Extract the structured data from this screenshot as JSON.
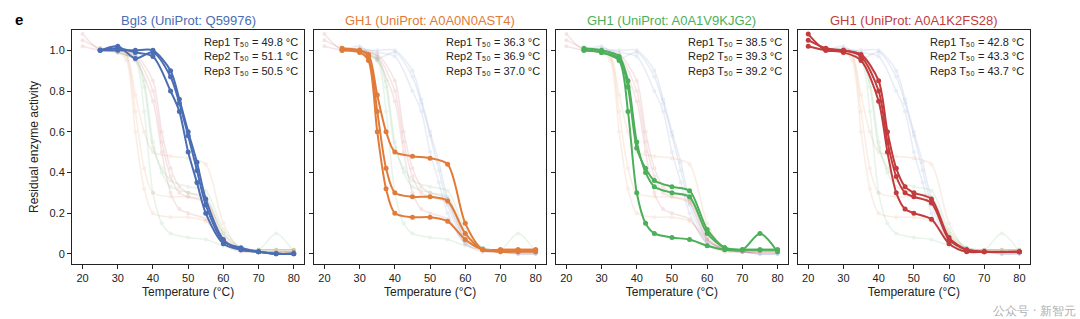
{
  "panel_label": "e",
  "watermark": "公众号 · 新智元",
  "chart_data": [
    {
      "type": "line",
      "title": "Bgl3 (UniProt: Q59976)",
      "color": "#4a6db3",
      "marker": "circle",
      "line_style": "solid",
      "xlabel": "Temperature (°C)",
      "ylabel": "Residual enzyme activity",
      "xlim": [
        17,
        83
      ],
      "xticks": [
        20,
        30,
        40,
        50,
        60,
        70,
        80
      ],
      "ylim": [
        -0.05,
        1.1
      ],
      "yticks": [
        0,
        0.2,
        0.4,
        0.6,
        0.8,
        {
          "value": 1,
          "label": "1.0"
        }
      ],
      "series": [
        {
          "name": "Rep1 T₅₀ = 49.8 °C",
          "x": [
            25,
            30,
            35,
            40,
            45,
            47.5,
            50,
            52.5,
            55,
            60,
            65,
            70,
            75,
            80
          ],
          "values": [
            1.0,
            1.01,
            0.99,
            0.97,
            0.8,
            0.7,
            0.5,
            0.35,
            0.2,
            0.05,
            0.02,
            0.01,
            0.0,
            0.0
          ]
        },
        {
          "name": "Rep2 T₅₀ = 51.1 °C",
          "x": [
            25,
            30,
            35,
            40,
            45,
            47.5,
            50,
            52.5,
            55,
            60,
            65,
            70,
            75,
            80
          ],
          "values": [
            1.0,
            1.0,
            1.0,
            1.0,
            0.9,
            0.76,
            0.6,
            0.45,
            0.27,
            0.07,
            0.02,
            0.01,
            0.0,
            0.0
          ]
        },
        {
          "name": "Rep3 T₅₀ = 50.5 °C",
          "x": [
            25,
            30,
            35,
            40,
            45,
            47.5,
            50,
            52.5,
            55,
            60,
            65,
            70,
            75,
            80
          ],
          "values": [
            1.0,
            1.02,
            0.96,
            0.99,
            0.87,
            0.74,
            0.58,
            0.41,
            0.24,
            0.06,
            0.03,
            0.01,
            0.0,
            0.0
          ]
        }
      ]
    },
    {
      "type": "line",
      "title": "GH1 (UniProt: A0A0N0AST4)",
      "color": "#e07b39",
      "marker": "circle",
      "line_style": "solid",
      "xlabel": "Temperature (°C)",
      "tick_labels": "x",
      "xlim": [
        17,
        83
      ],
      "xticks": [
        20,
        30,
        40,
        50,
        60,
        70,
        80
      ],
      "ylim": [
        -0.05,
        1.1
      ],
      "yticks": [
        0,
        0.2,
        0.4,
        0.6,
        0.8,
        {
          "value": 1,
          "label": "1.0"
        }
      ],
      "series": [
        {
          "name": "Rep1 T₅₀ = 36.3 °C",
          "x": [
            25,
            30,
            32.5,
            35,
            37.5,
            40,
            45,
            50,
            55,
            60,
            65,
            70,
            75,
            80
          ],
          "values": [
            1.0,
            0.99,
            0.95,
            0.6,
            0.32,
            0.2,
            0.18,
            0.18,
            0.16,
            0.07,
            0.02,
            0.01,
            0.01,
            0.01
          ]
        },
        {
          "name": "Rep2 T₅₀ = 36.9 °C",
          "x": [
            25,
            30,
            32.5,
            35,
            37.5,
            40,
            45,
            50,
            55,
            60,
            65,
            70,
            75,
            80
          ],
          "values": [
            1.0,
            1.0,
            0.97,
            0.7,
            0.42,
            0.3,
            0.28,
            0.28,
            0.26,
            0.1,
            0.02,
            0.02,
            0.02,
            0.02
          ]
        },
        {
          "name": "Rep3 T₅₀ = 37.0 °C",
          "x": [
            25,
            30,
            32.5,
            35,
            37.5,
            40,
            45,
            50,
            55,
            60,
            65,
            70,
            75,
            80
          ],
          "values": [
            1.01,
            1.0,
            0.98,
            0.78,
            0.6,
            0.5,
            0.48,
            0.47,
            0.44,
            0.15,
            0.02,
            0.02,
            0.02,
            0.02
          ]
        }
      ]
    },
    {
      "type": "line",
      "title": "GH1 (UniProt: A0A1V9KJG2)",
      "color": "#4caf5a",
      "marker": "circle",
      "line_style": "solid",
      "xlabel": "Temperature (°C)",
      "tick_labels": "x",
      "xlim": [
        17,
        83
      ],
      "xticks": [
        20,
        30,
        40,
        50,
        60,
        70,
        80
      ],
      "ylim": [
        -0.05,
        1.1
      ],
      "yticks": [
        0,
        0.2,
        0.4,
        0.6,
        0.8,
        {
          "value": 1,
          "label": "1.0"
        }
      ],
      "series": [
        {
          "name": "Rep1 T₅₀ = 38.5 °C",
          "x": [
            25,
            30,
            35,
            37.5,
            40,
            42.5,
            45,
            50,
            55,
            60,
            65,
            70,
            75,
            80
          ],
          "values": [
            1.0,
            0.99,
            0.95,
            0.7,
            0.3,
            0.15,
            0.1,
            0.08,
            0.07,
            0.04,
            0.02,
            0.02,
            0.02,
            0.02
          ]
        },
        {
          "name": "Rep2 T₅₀ = 39.3 °C",
          "x": [
            25,
            30,
            35,
            37.5,
            40,
            42.5,
            45,
            50,
            55,
            60,
            65,
            70,
            75,
            80
          ],
          "values": [
            1.01,
            1.0,
            0.97,
            0.85,
            0.55,
            0.4,
            0.33,
            0.3,
            0.28,
            0.1,
            0.03,
            0.02,
            0.1,
            0.01
          ]
        },
        {
          "name": "Rep3 T₅₀ = 39.2 °C",
          "x": [
            25,
            30,
            35,
            37.5,
            40,
            42.5,
            45,
            50,
            55,
            60,
            65,
            70,
            75,
            80
          ],
          "values": [
            1.0,
            0.99,
            0.96,
            0.82,
            0.52,
            0.42,
            0.36,
            0.33,
            0.31,
            0.12,
            0.03,
            0.02,
            0.02,
            0.02
          ]
        }
      ]
    },
    {
      "type": "line",
      "title": "GH1 (UniProt: A0A1K2FS28)",
      "color": "#c23b3d",
      "marker": "circle",
      "line_style": "solid",
      "xlabel": "Temperature (°C)",
      "tick_labels": "x",
      "xlim": [
        17,
        83
      ],
      "xticks": [
        20,
        30,
        40,
        50,
        60,
        70,
        80
      ],
      "ylim": [
        -0.05,
        1.1
      ],
      "yticks": [
        0,
        0.2,
        0.4,
        0.6,
        0.8,
        {
          "value": 1,
          "label": "1.0"
        }
      ],
      "series": [
        {
          "name": "Rep1 T₅₀ = 42.8 °C",
          "x": [
            20,
            25,
            30,
            35,
            40,
            42.5,
            45,
            47.5,
            50,
            55,
            60,
            65,
            70,
            80
          ],
          "values": [
            1.02,
            1.0,
            0.99,
            0.95,
            0.75,
            0.5,
            0.3,
            0.22,
            0.2,
            0.17,
            0.05,
            0.01,
            0.01,
            0.01
          ]
        },
        {
          "name": "Rep2 T₅₀ = 43.3 °C",
          "x": [
            20,
            25,
            30,
            35,
            40,
            42.5,
            45,
            47.5,
            50,
            55,
            60,
            65,
            70,
            80
          ],
          "values": [
            1.08,
            1.0,
            1.0,
            0.97,
            0.8,
            0.55,
            0.38,
            0.3,
            0.28,
            0.25,
            0.07,
            0.02,
            0.01,
            0.01
          ]
        },
        {
          "name": "Rep3 T₅₀ = 43.7 °C",
          "x": [
            20,
            25,
            30,
            35,
            40,
            42.5,
            45,
            47.5,
            50,
            55,
            60,
            65,
            70,
            80
          ],
          "values": [
            1.05,
            1.01,
            1.0,
            0.98,
            0.85,
            0.6,
            0.42,
            0.33,
            0.3,
            0.27,
            0.08,
            0.02,
            0.01,
            0.01
          ]
        }
      ]
    }
  ]
}
